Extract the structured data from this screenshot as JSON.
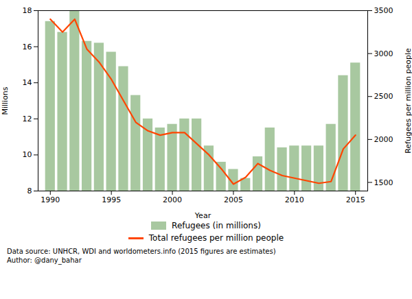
{
  "chart_data": {
    "type": "bar",
    "x": [
      1990,
      1991,
      1992,
      1993,
      1994,
      1995,
      1996,
      1997,
      1998,
      1999,
      2000,
      2001,
      2002,
      2003,
      2004,
      2005,
      2006,
      2007,
      2008,
      2009,
      2010,
      2011,
      2012,
      2013,
      2014,
      2015
    ],
    "xlabel": "Year",
    "ylabel": "Millions",
    "y2label": "Refugees per million people",
    "xlim": [
      1989,
      2016
    ],
    "xticks": [
      1990,
      1995,
      2000,
      2005,
      2010,
      2015
    ],
    "ylim": [
      8,
      18
    ],
    "yticks": [
      8,
      10,
      12,
      14,
      16,
      18
    ],
    "y2lim": [
      1400,
      3500
    ],
    "y2ticks": [
      1500,
      2000,
      2500,
      3000,
      3500
    ],
    "series": [
      {
        "name": "Refugees (in millions)",
        "type": "bar",
        "color": "#a8c8a0",
        "values": [
          17.4,
          16.8,
          18.0,
          16.3,
          16.2,
          15.7,
          14.9,
          13.3,
          12.0,
          11.5,
          11.7,
          12.0,
          12.0,
          10.5,
          9.6,
          9.2,
          8.7,
          9.9,
          11.5,
          10.4,
          10.5,
          10.5,
          10.5,
          11.7,
          14.4,
          15.1
        ]
      },
      {
        "name": "Total refugees per million people",
        "type": "line",
        "color": "#FF4500",
        "axis": "y2",
        "values": [
          3400,
          3250,
          3400,
          3050,
          2900,
          2700,
          2450,
          2200,
          2100,
          2050,
          2080,
          2080,
          1950,
          1820,
          1660,
          1480,
          1560,
          1720,
          1640,
          1580,
          1550,
          1520,
          1490,
          1510,
          1890,
          2050
        ]
      }
    ],
    "legend": "bottom",
    "grid": false,
    "annotations": [
      "Data source: UNHCR, WDI and worldometers.info (2015 figures are estimates)",
      "Author: @dany_bahar"
    ]
  }
}
